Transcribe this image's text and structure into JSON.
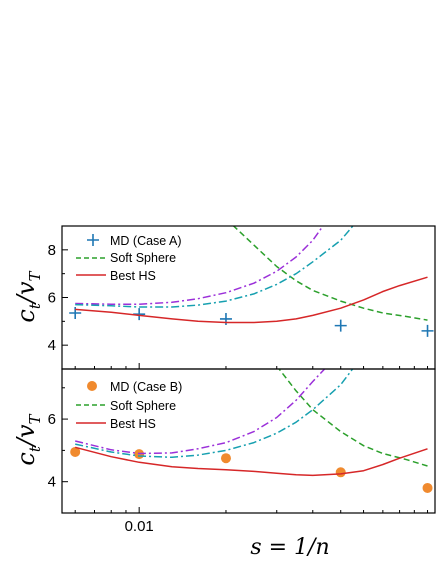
{
  "chart_data": [
    {
      "type": "line",
      "panel": "top",
      "ylabel": "c_t/v_T",
      "xlabel": "s = 1/n",
      "xscale": "log",
      "xlim": [
        0.0054,
        0.107
      ],
      "ylim": [
        3.0,
        9.0
      ],
      "yticks": [
        4,
        6,
        8
      ],
      "ytick_labels": [
        "4",
        "6",
        "8"
      ],
      "xticks": [
        0.01
      ],
      "xtick_labels": [
        "0.01"
      ],
      "legend_position": "top-left",
      "series": [
        {
          "name": "MD (Case A)",
          "kind": "marker",
          "marker": "plus",
          "color": "#1f77b4",
          "points": [
            [
              0.006,
              5.35
            ],
            [
              0.01,
              5.3
            ],
            [
              0.02,
              5.1
            ],
            [
              0.05,
              4.82
            ],
            [
              0.1,
              4.6
            ]
          ]
        },
        {
          "name": "Soft Sphere",
          "kind": "line",
          "dash": "dashed",
          "color": "#2ca02c",
          "points": [
            [
              0.02,
              9.3
            ],
            [
              0.025,
              8.2
            ],
            [
              0.03,
              7.3
            ],
            [
              0.035,
              6.7
            ],
            [
              0.04,
              6.3
            ],
            [
              0.05,
              5.85
            ],
            [
              0.06,
              5.55
            ],
            [
              0.07,
              5.35
            ],
            [
              0.085,
              5.2
            ],
            [
              0.1,
              5.05
            ]
          ]
        },
        {
          "name": "Best HS",
          "kind": "line",
          "dash": "solid",
          "color": "#d62728",
          "points": [
            [
              0.006,
              5.5
            ],
            [
              0.008,
              5.38
            ],
            [
              0.01,
              5.25
            ],
            [
              0.013,
              5.1
            ],
            [
              0.016,
              5.0
            ],
            [
              0.02,
              4.95
            ],
            [
              0.025,
              4.95
            ],
            [
              0.03,
              5.0
            ],
            [
              0.035,
              5.1
            ],
            [
              0.04,
              5.25
            ],
            [
              0.05,
              5.55
            ],
            [
              0.06,
              5.9
            ],
            [
              0.07,
              6.25
            ],
            [
              0.08,
              6.5
            ],
            [
              0.1,
              6.85
            ]
          ]
        },
        {
          "kind": "line",
          "dash": "dashdot",
          "color": "#9b30d9",
          "points": [
            [
              0.006,
              5.75
            ],
            [
              0.008,
              5.72
            ],
            [
              0.01,
              5.72
            ],
            [
              0.013,
              5.8
            ],
            [
              0.016,
              5.95
            ],
            [
              0.02,
              6.2
            ],
            [
              0.025,
              6.6
            ],
            [
              0.03,
              7.1
            ],
            [
              0.035,
              7.7
            ],
            [
              0.04,
              8.4
            ],
            [
              0.044,
              9.1
            ]
          ]
        },
        {
          "kind": "line",
          "dash": "dashdot",
          "color": "#17a0b0",
          "points": [
            [
              0.006,
              5.7
            ],
            [
              0.008,
              5.65
            ],
            [
              0.01,
              5.6
            ],
            [
              0.013,
              5.6
            ],
            [
              0.016,
              5.68
            ],
            [
              0.02,
              5.85
            ],
            [
              0.025,
              6.15
            ],
            [
              0.03,
              6.55
            ],
            [
              0.035,
              7.0
            ],
            [
              0.04,
              7.5
            ],
            [
              0.05,
              8.4
            ],
            [
              0.056,
              9.1
            ]
          ]
        }
      ]
    },
    {
      "type": "line",
      "panel": "bottom",
      "ylabel": "c_t/v_T",
      "xlabel": "s = 1/n",
      "xscale": "log",
      "xlim": [
        0.0054,
        0.107
      ],
      "ylim": [
        3.0,
        7.6
      ],
      "yticks": [
        4,
        6
      ],
      "ytick_labels": [
        "4",
        "6"
      ],
      "xticks": [
        0.01
      ],
      "xtick_labels": [
        "0.01"
      ],
      "legend_position": "top-left",
      "series": [
        {
          "name": "MD (Case B)",
          "kind": "marker",
          "marker": "circle",
          "color": "#f08a2e",
          "points": [
            [
              0.006,
              4.95
            ],
            [
              0.01,
              4.88
            ],
            [
              0.02,
              4.75
            ],
            [
              0.05,
              4.3
            ],
            [
              0.1,
              3.8
            ]
          ]
        },
        {
          "name": "Soft Sphere",
          "kind": "line",
          "dash": "dashed",
          "color": "#2ca02c",
          "points": [
            [
              0.03,
              7.7
            ],
            [
              0.035,
              6.9
            ],
            [
              0.04,
              6.3
            ],
            [
              0.05,
              5.6
            ],
            [
              0.06,
              5.15
            ],
            [
              0.07,
              4.9
            ],
            [
              0.085,
              4.7
            ],
            [
              0.1,
              4.5
            ]
          ]
        },
        {
          "name": "Best HS",
          "kind": "line",
          "dash": "solid",
          "color": "#d62728",
          "points": [
            [
              0.006,
              5.1
            ],
            [
              0.008,
              4.8
            ],
            [
              0.01,
              4.62
            ],
            [
              0.013,
              4.48
            ],
            [
              0.016,
              4.42
            ],
            [
              0.02,
              4.38
            ],
            [
              0.025,
              4.33
            ],
            [
              0.03,
              4.27
            ],
            [
              0.035,
              4.22
            ],
            [
              0.04,
              4.2
            ],
            [
              0.05,
              4.25
            ],
            [
              0.06,
              4.35
            ],
            [
              0.07,
              4.55
            ],
            [
              0.08,
              4.75
            ],
            [
              0.1,
              5.05
            ]
          ]
        },
        {
          "kind": "line",
          "dash": "dashdot",
          "color": "#9b30d9",
          "points": [
            [
              0.006,
              5.3
            ],
            [
              0.008,
              5.02
            ],
            [
              0.01,
              4.9
            ],
            [
              0.013,
              4.92
            ],
            [
              0.016,
              5.05
            ],
            [
              0.02,
              5.25
            ],
            [
              0.025,
              5.6
            ],
            [
              0.03,
              6.05
            ],
            [
              0.035,
              6.6
            ],
            [
              0.04,
              7.2
            ],
            [
              0.045,
              7.7
            ]
          ]
        },
        {
          "kind": "line",
          "dash": "dashdot",
          "color": "#17a0b0",
          "points": [
            [
              0.006,
              5.2
            ],
            [
              0.008,
              4.95
            ],
            [
              0.01,
              4.82
            ],
            [
              0.013,
              4.78
            ],
            [
              0.016,
              4.85
            ],
            [
              0.02,
              5.0
            ],
            [
              0.025,
              5.25
            ],
            [
              0.03,
              5.55
            ],
            [
              0.035,
              5.9
            ],
            [
              0.04,
              6.3
            ],
            [
              0.05,
              7.1
            ],
            [
              0.056,
              7.7
            ]
          ]
        }
      ]
    }
  ]
}
